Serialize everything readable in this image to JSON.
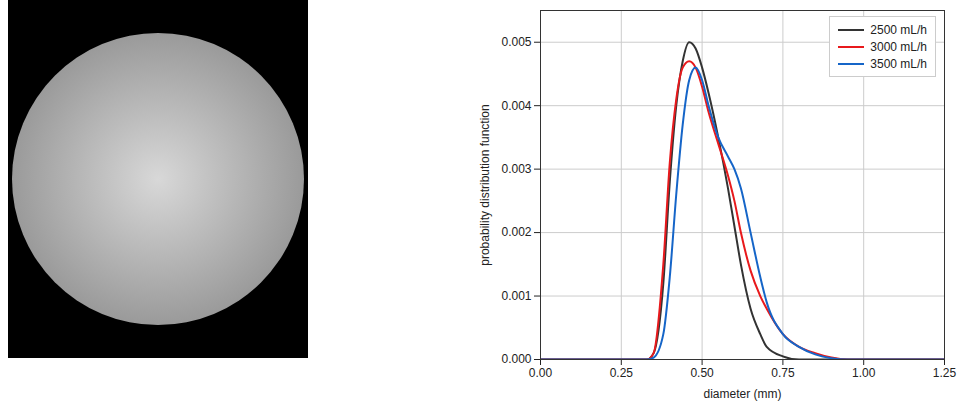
{
  "chart_data": {
    "type": "line",
    "x_label": "diameter (mm)",
    "y_label": "probability distribution function",
    "x": [
      0,
      0.3,
      0.33,
      0.35,
      0.38,
      0.4,
      0.42,
      0.44,
      0.46,
      0.48,
      0.5,
      0.52,
      0.55,
      0.58,
      0.6,
      0.62,
      0.65,
      0.68,
      0.7,
      0.75,
      0.8,
      0.85,
      0.9,
      0.95,
      1.0,
      1.25
    ],
    "series": [
      {
        "name": "2500 mL/h",
        "color": "#333333",
        "values": [
          0,
          0,
          0,
          0.0001,
          0.0012,
          0.0028,
          0.004,
          0.0047,
          0.005,
          0.0049,
          0.0046,
          0.0042,
          0.0035,
          0.0027,
          0.0021,
          0.0015,
          0.0008,
          0.0004,
          0.0002,
          5e-05,
          0,
          0,
          0,
          0,
          0,
          0
        ]
      },
      {
        "name": "3000 mL/h",
        "color": "#e8191c",
        "values": [
          0,
          0,
          0,
          0.0001,
          0.0015,
          0.0031,
          0.0041,
          0.0046,
          0.0047,
          0.0046,
          0.0043,
          0.0039,
          0.0034,
          0.0029,
          0.0025,
          0.002,
          0.0014,
          0.001,
          0.0008,
          0.0004,
          0.0002,
          0.0001,
          3e-05,
          0,
          0,
          0
        ]
      },
      {
        "name": "3500 mL/h",
        "color": "#1565c8",
        "values": [
          0,
          0,
          0,
          3e-05,
          0.0004,
          0.0013,
          0.0026,
          0.0037,
          0.0044,
          0.0046,
          0.0044,
          0.004,
          0.0035,
          0.0032,
          0.003,
          0.0027,
          0.002,
          0.0013,
          0.0009,
          0.0004,
          0.0002,
          8e-05,
          2e-05,
          0,
          0,
          0
        ]
      }
    ],
    "xlim": [
      0,
      1.25
    ],
    "xticks": [
      {
        "value": 0,
        "label": "0.00"
      },
      {
        "value": 0.25,
        "label": "0.25"
      },
      {
        "value": 0.5,
        "label": "0.50"
      },
      {
        "value": 0.75,
        "label": "0.75"
      },
      {
        "value": 1,
        "label": "1.00"
      },
      {
        "value": 1.25,
        "label": "1.25"
      }
    ],
    "ylim": [
      0,
      0.0055
    ],
    "yticks": [
      {
        "value": 0,
        "label": "0.000"
      },
      {
        "value": 0.001,
        "label": "0.001"
      },
      {
        "value": 0.002,
        "label": "0.002"
      },
      {
        "value": 0.003,
        "label": "0.003"
      },
      {
        "value": 0.004,
        "label": "0.004"
      },
      {
        "value": 0.005,
        "label": "0.005"
      }
    ],
    "grid": true,
    "legend": "top-right"
  }
}
